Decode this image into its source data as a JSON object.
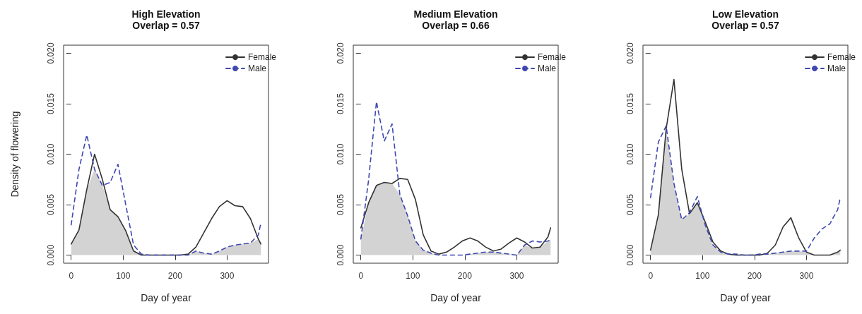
{
  "chart_data": [
    {
      "type": "line",
      "title": "High Elevation",
      "subtitle": "Overlap = 0.57",
      "xlabel": "Day of year",
      "ylabel": "Density of flowering",
      "x": [
        0,
        15,
        30,
        45,
        60,
        75,
        90,
        105,
        120,
        135,
        150,
        165,
        180,
        195,
        210,
        225,
        240,
        255,
        270,
        285,
        300,
        315,
        330,
        345,
        360,
        365
      ],
      "series": [
        {
          "type": "area",
          "color": "#d3d3d3",
          "values": [
            0.0011,
            0.0025,
            0.0065,
            0.0085,
            0.0069,
            0.0045,
            0.0038,
            0.0024,
            0.0004,
            0,
            0,
            0,
            0,
            0,
            0,
            0,
            0.0004,
            0.0002,
            0.0001,
            0.0004,
            0.0008,
            0.001,
            0.0011,
            0.0012,
            0.0016,
            0.0011
          ]
        },
        {
          "name": "Female",
          "color": "#333333",
          "line_style": "solid",
          "values": [
            0.0011,
            0.0025,
            0.0065,
            0.01,
            0.0075,
            0.0045,
            0.0038,
            0.0024,
            0.0004,
            0,
            0,
            0,
            0,
            0,
            0,
            0.0001,
            0.0008,
            0.0022,
            0.0036,
            0.0048,
            0.0054,
            0.0049,
            0.0048,
            0.0036,
            0.0016,
            0.0011
          ]
        },
        {
          "name": "Male",
          "color": "#3f48b0",
          "line_style": "dashed",
          "values": [
            0.003,
            0.0085,
            0.0119,
            0.0085,
            0.0069,
            0.0072,
            0.009,
            0.005,
            0.001,
            0.0001,
            0,
            0,
            0,
            0,
            0,
            0,
            0.0004,
            0.0002,
            0.0001,
            0.0004,
            0.0008,
            0.001,
            0.0011,
            0.0012,
            0.002,
            0.0032
          ]
        }
      ],
      "xlim": [
        -14.6,
        379.6
      ],
      "xticks": [
        0,
        100,
        200,
        300
      ],
      "ylim": [
        -0.0008,
        0.0208
      ],
      "yticks": [
        {
          "value": 0,
          "label": "0.000"
        },
        {
          "value": 0.005,
          "label": "0.005"
        },
        {
          "value": 0.01,
          "label": "0.010"
        },
        {
          "value": 0.015,
          "label": "0.015"
        },
        {
          "value": 0.02,
          "label": "0.020"
        }
      ],
      "legend": "top right",
      "grid": false,
      "marker": "none"
    },
    {
      "type": "line",
      "title": "Medium Elevation",
      "subtitle": "Overlap = 0.66",
      "xlabel": "Day of year",
      "x": [
        0,
        15,
        30,
        45,
        60,
        75,
        90,
        105,
        120,
        135,
        150,
        165,
        180,
        195,
        210,
        225,
        240,
        255,
        270,
        285,
        300,
        315,
        330,
        345,
        360,
        365
      ],
      "series": [
        {
          "type": "area",
          "color": "#d3d3d3",
          "values": [
            0.0016,
            0.0052,
            0.0069,
            0.0072,
            0.0071,
            0.006,
            0.0039,
            0.0014,
            0.0005,
            0.0002,
            0,
            0,
            0,
            0,
            0.0001,
            0.0002,
            0.0003,
            0.0003,
            0.0002,
            0.0001,
            0,
            0.001,
            0.0007,
            0.0008,
            0.0014,
            0.0015
          ]
        },
        {
          "name": "Female",
          "color": "#333333",
          "line_style": "solid",
          "values": [
            0.0027,
            0.0052,
            0.0069,
            0.0072,
            0.0071,
            0.0076,
            0.0075,
            0.0055,
            0.002,
            0.0004,
            0.0001,
            0.0003,
            0.0008,
            0.0014,
            0.0017,
            0.0014,
            0.0008,
            0.0004,
            0.0006,
            0.0012,
            0.0017,
            0.0013,
            0.0007,
            0.0008,
            0.0018,
            0.0027
          ]
        },
        {
          "name": "Male",
          "color": "#3f48b0",
          "line_style": "dashed",
          "values": [
            0.0016,
            0.0075,
            0.0152,
            0.0113,
            0.013,
            0.006,
            0.0039,
            0.0014,
            0.0005,
            0.0002,
            0,
            0,
            0,
            0,
            0.0001,
            0.0002,
            0.0003,
            0.0003,
            0.0002,
            0.0001,
            0,
            0.001,
            0.0014,
            0.0013,
            0.0014,
            0.0015
          ]
        }
      ],
      "xlim": [
        -14.6,
        379.6
      ],
      "xticks": [
        0,
        100,
        200,
        300
      ],
      "ylim": [
        -0.0008,
        0.0208
      ],
      "yticks": [
        {
          "value": 0,
          "label": "0.000"
        },
        {
          "value": 0.005,
          "label": "0.005"
        },
        {
          "value": 0.01,
          "label": "0.010"
        },
        {
          "value": 0.015,
          "label": "0.015"
        },
        {
          "value": 0.02,
          "label": "0.020"
        }
      ],
      "legend": "top right",
      "grid": false,
      "marker": "none"
    },
    {
      "type": "line",
      "title": "Low Elevation",
      "subtitle": "Overlap = 0.57",
      "xlabel": "Day of year",
      "x": [
        0,
        15,
        30,
        45,
        60,
        75,
        90,
        105,
        120,
        135,
        150,
        165,
        180,
        195,
        210,
        225,
        240,
        255,
        270,
        285,
        300,
        315,
        330,
        345,
        360,
        365
      ],
      "series": [
        {
          "type": "area",
          "color": "#d3d3d3",
          "values": [
            0.0005,
            0.004,
            0.0125,
            0.0071,
            0.0035,
            0.0041,
            0.0052,
            0.003,
            0.001,
            0.0003,
            0.0001,
            0,
            0,
            0,
            0,
            0.0001,
            0.0002,
            0.0003,
            0.0004,
            0.0004,
            0.0003,
            0,
            0,
            0,
            0.0003,
            0.0005
          ]
        },
        {
          "name": "Female",
          "color": "#333333",
          "line_style": "solid",
          "values": [
            0.0005,
            0.004,
            0.0125,
            0.0174,
            0.0085,
            0.0041,
            0.0052,
            0.0033,
            0.0013,
            0.0004,
            0.0001,
            0,
            0,
            0,
            0,
            0.0002,
            0.001,
            0.0028,
            0.0037,
            0.0017,
            0.0003,
            0,
            0,
            0,
            0.0003,
            0.0005
          ]
        },
        {
          "name": "Male",
          "color": "#3f48b0",
          "line_style": "dashed",
          "values": [
            0.0057,
            0.0112,
            0.0128,
            0.0071,
            0.0035,
            0.0042,
            0.0058,
            0.003,
            0.001,
            0.0003,
            0.0001,
            0.0001,
            0,
            0,
            0.0001,
            0.0001,
            0.0002,
            0.0003,
            0.0004,
            0.0004,
            0.0004,
            0.0017,
            0.0026,
            0.0031,
            0.0045,
            0.0057
          ]
        }
      ],
      "xlim": [
        -14.6,
        379.6
      ],
      "xticks": [
        0,
        100,
        200,
        300
      ],
      "ylim": [
        -0.0008,
        0.0208
      ],
      "yticks": [
        {
          "value": 0,
          "label": "0.000"
        },
        {
          "value": 0.005,
          "label": "0.005"
        },
        {
          "value": 0.01,
          "label": "0.010"
        },
        {
          "value": 0.015,
          "label": "0.015"
        },
        {
          "value": 0.02,
          "label": "0.020"
        }
      ],
      "legend": "top right",
      "grid": false,
      "marker": "none"
    }
  ]
}
